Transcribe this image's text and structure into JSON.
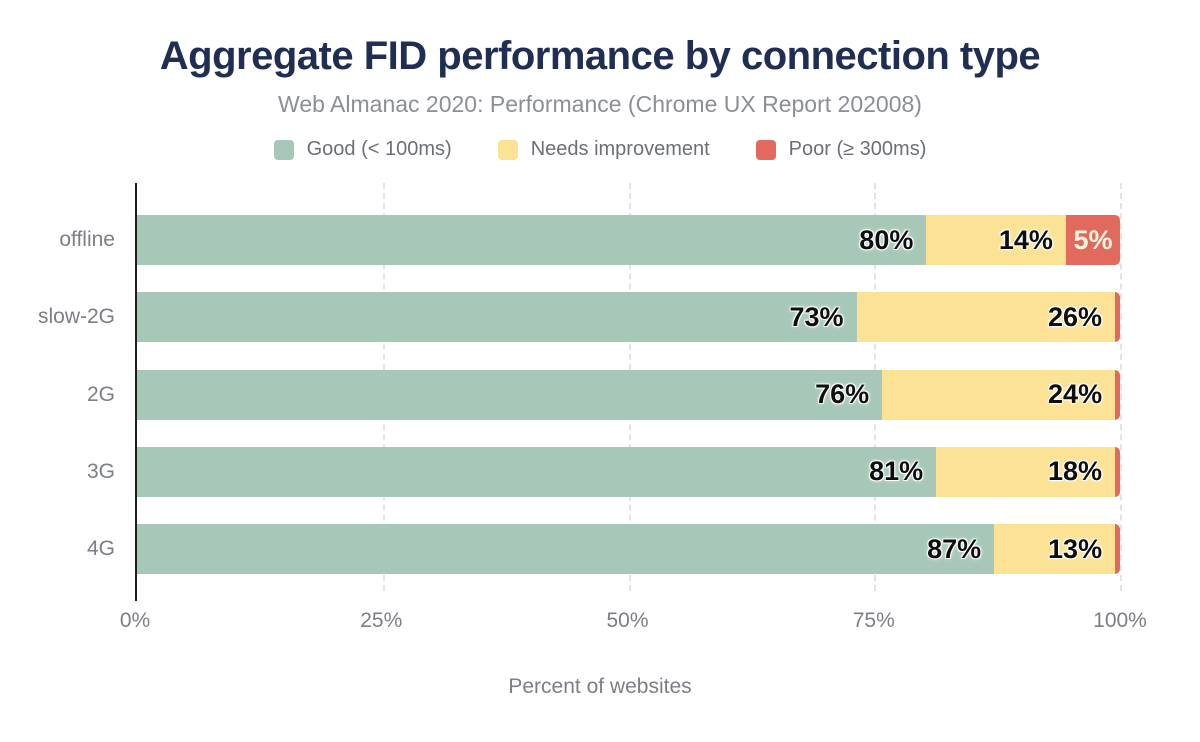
{
  "title": "Aggregate FID performance by connection type",
  "subtitle": "Web Almanac 2020: Performance (Chrome UX Report 202008)",
  "colors": {
    "title_navy": "#1f2e52",
    "good_green": "#a7c8b8",
    "needs_yellow": "#fce294",
    "poor_red": "#e2695d",
    "axis_text_gray": "#7b7f85",
    "gridline_gray": "#e3e3e3"
  },
  "chart_data": {
    "type": "bar",
    "orientation": "horizontal",
    "stacked": true,
    "title": "Aggregate FID performance by connection type",
    "subtitle": "Web Almanac 2020: Performance (Chrome UX Report 202008)",
    "xlabel": "Percent of websites",
    "ylabel": "",
    "xlim": [
      0,
      100
    ],
    "grid": "vertical-dashed",
    "legend_position": "top",
    "categories": [
      "offline",
      "slow-2G",
      "2G",
      "3G",
      "4G"
    ],
    "series": [
      {
        "name": "Good (< 100ms)",
        "color": "#a7c8b8",
        "values": [
          80,
          73,
          76,
          81,
          87
        ],
        "labels": [
          "80%",
          "73%",
          "76%",
          "81%",
          "87%"
        ]
      },
      {
        "name": "Needs improvement",
        "color": "#fce294",
        "values": [
          14,
          26,
          24,
          18,
          13
        ],
        "labels": [
          "14%",
          "26%",
          "24%",
          "18%",
          "13%"
        ]
      },
      {
        "name": "Poor (≥ 300ms)",
        "color": "#e2695d",
        "values": [
          5,
          1,
          0,
          1,
          0
        ],
        "labels": [
          "5%",
          "",
          "",
          "",
          ""
        ]
      }
    ],
    "render_widths": [
      [
        80.3,
        14.2,
        5.5
      ],
      [
        73.2,
        26.3,
        0.5
      ],
      [
        75.8,
        23.7,
        0.5
      ],
      [
        81.3,
        18.2,
        0.5
      ],
      [
        87.2,
        12.3,
        0.5
      ]
    ],
    "x_ticks": [
      "0%",
      "25%",
      "50%",
      "75%",
      "100%"
    ],
    "x_tick_positions": [
      0,
      25,
      50,
      75,
      100
    ]
  }
}
